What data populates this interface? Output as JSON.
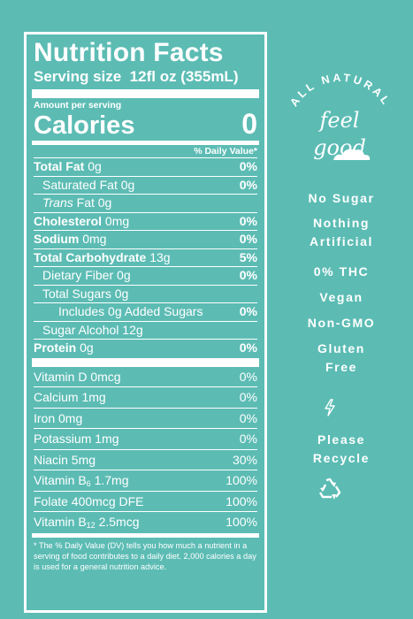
{
  "label": {
    "title": "Nutrition Facts",
    "serving_size_label": "Serving size",
    "serving_size_value": "12fl oz (355mL)",
    "amount_per_serving": "Amount per serving",
    "calories_label": "Calories",
    "calories_value": "0",
    "dv_header": "% Daily Value*",
    "nutrients": [
      {
        "name": "Total Fat",
        "amount": "0g",
        "dv": "0%"
      },
      {
        "name": "Saturated Fat",
        "amount": "0g",
        "dv": "0%"
      },
      {
        "name": "Trans",
        "amount": "Fat 0g",
        "dv": ""
      },
      {
        "name": "Cholesterol",
        "amount": "0mg",
        "dv": "0%"
      },
      {
        "name": "Sodium",
        "amount": "0mg",
        "dv": "0%"
      },
      {
        "name": "Total Carbohydrate",
        "amount": "13g",
        "dv": "5%"
      },
      {
        "name": "Dietary Fiber",
        "amount": "0g",
        "dv": "0%"
      },
      {
        "name": "Total Sugars",
        "amount": "0g",
        "dv": ""
      },
      {
        "name": "Includes 0g Added Sugars",
        "amount": "",
        "dv": "0%"
      },
      {
        "name": "Sugar Alcohol",
        "amount": "12g",
        "dv": ""
      },
      {
        "name": "Protein",
        "amount": "0g",
        "dv": "0%"
      }
    ],
    "vitamins": [
      {
        "name": "Vitamin D 0mcg",
        "dv": "0%"
      },
      {
        "name": "Calcium 1mg",
        "dv": "0%"
      },
      {
        "name": "Iron 0mg",
        "dv": "0%"
      },
      {
        "name": "Potassium 1mg",
        "dv": "0%"
      },
      {
        "name": "Niacin 5mg",
        "dv": "30%"
      },
      {
        "name": "Vitamin B",
        "sub": "6",
        "amount": "1.7mg",
        "dv": "100%"
      },
      {
        "name": "Folate 400mcg DFE",
        "dv": "100%"
      },
      {
        "name": "Vitamin B",
        "sub": "12",
        "amount": "2.5mcg",
        "dv": "100%"
      }
    ],
    "footnote": "* The % Daily Value (DV) tells you how much a nutrient in a serving of food contributes to a daily diet. 2,000 calories a day is used for a general nutrition advice."
  },
  "badge": {
    "arc_text": "ALL NATURAL",
    "script_line1": "feel",
    "script_line2": "good"
  },
  "claims": [
    "No Sugar",
    "Nothing",
    "Artificial",
    "0% THC",
    "Vegan",
    "Non-GMO",
    "Gluten",
    "Free"
  ],
  "recycle": [
    "Please",
    "Recycle"
  ],
  "colors": {
    "background": "#5cbcb4",
    "foreground": "#ffffff"
  }
}
